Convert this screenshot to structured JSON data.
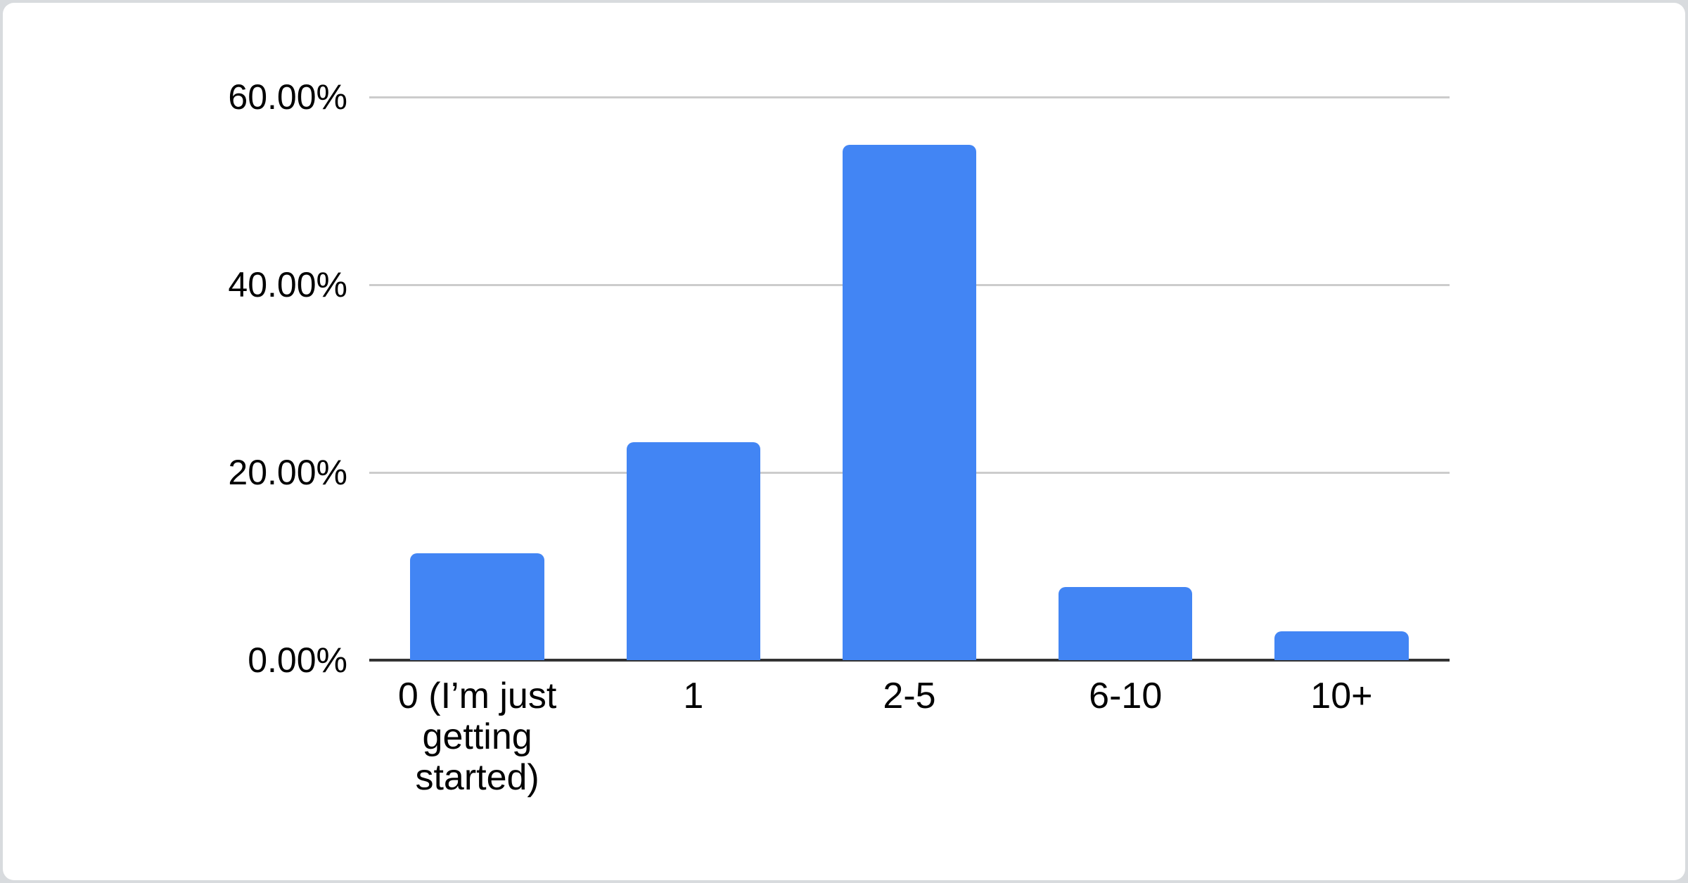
{
  "window": {
    "background_color": "#d8dbde",
    "card_background_color": "#ffffff"
  },
  "chart_data": {
    "type": "bar",
    "title": "",
    "categories": [
      "0 (I’m just getting started)",
      "1",
      "2-5",
      "6-10",
      "10+"
    ],
    "values": [
      11.4,
      23.2,
      54.9,
      7.8,
      3.1
    ],
    "value_unit": "%",
    "xlabel": "",
    "ylabel": "",
    "ylim": [
      0,
      60
    ],
    "y_ticks": [
      {
        "label": "0.00%",
        "value": 0
      },
      {
        "label": "20.00%",
        "value": 20
      },
      {
        "label": "40.00%",
        "value": 40
      },
      {
        "label": "60.00%",
        "value": 60
      }
    ],
    "grid": true,
    "legend": "none",
    "bar_color": "#4285f4",
    "gridline_color": "#cccccc",
    "axis_line_color": "#333333",
    "label_color": "#000000"
  }
}
